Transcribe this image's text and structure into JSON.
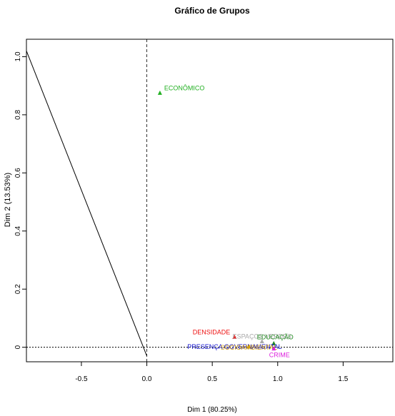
{
  "chart_data": {
    "type": "scatter",
    "title": "Gráfico de Grupos",
    "xlabel": "Dim 1 (80.25%)",
    "ylabel": "Dim 2 (13.53%)",
    "xlim": [
      -0.92,
      1.88
    ],
    "ylim": [
      -0.05,
      1.06
    ],
    "x_ticks": [
      -0.5,
      0.0,
      0.5,
      1.0,
      1.5
    ],
    "x_tick_labels": [
      "-0.5",
      "0.0",
      "0.5",
      "1.0",
      "1.5"
    ],
    "y_ticks": [
      0.0,
      0.2,
      0.4,
      0.6,
      0.8,
      1.0
    ],
    "y_tick_labels": [
      "0",
      "0.2",
      "0.4",
      "0.6",
      "0.8",
      "1.0"
    ],
    "grid": false,
    "reference_lines": {
      "vertical_at": 0,
      "horizontal_at": 0
    },
    "diagonal_line": {
      "from": [
        -0.92,
        1.02
      ],
      "to": [
        0.0,
        -0.03
      ]
    },
    "points": [
      {
        "label": "ECONÔMICO",
        "x": 0.1,
        "y": 0.875,
        "color": "#22b022"
      },
      {
        "label": "DENSIDADE",
        "x": 0.67,
        "y": 0.035,
        "color": "#ee1111"
      },
      {
        "label": "ESPAÇOS VERDES",
        "x": 0.88,
        "y": 0.02,
        "color": "#aaaaaa"
      },
      {
        "label": "EDUCAÇÃO",
        "x": 0.97,
        "y": 0.013,
        "color": "#228b22"
      },
      {
        "label": "PRESENÇA GOVERNAMENTAL",
        "x": 0.78,
        "y": 0.002,
        "color": "#1111cc"
      },
      {
        "label": "SOCIOAMBIENTAL",
        "x": 0.78,
        "y": 0.002,
        "color": "#d4a010"
      },
      {
        "label": "CRIME",
        "x": 0.97,
        "y": -0.005,
        "color": "#dd22dd"
      }
    ]
  }
}
